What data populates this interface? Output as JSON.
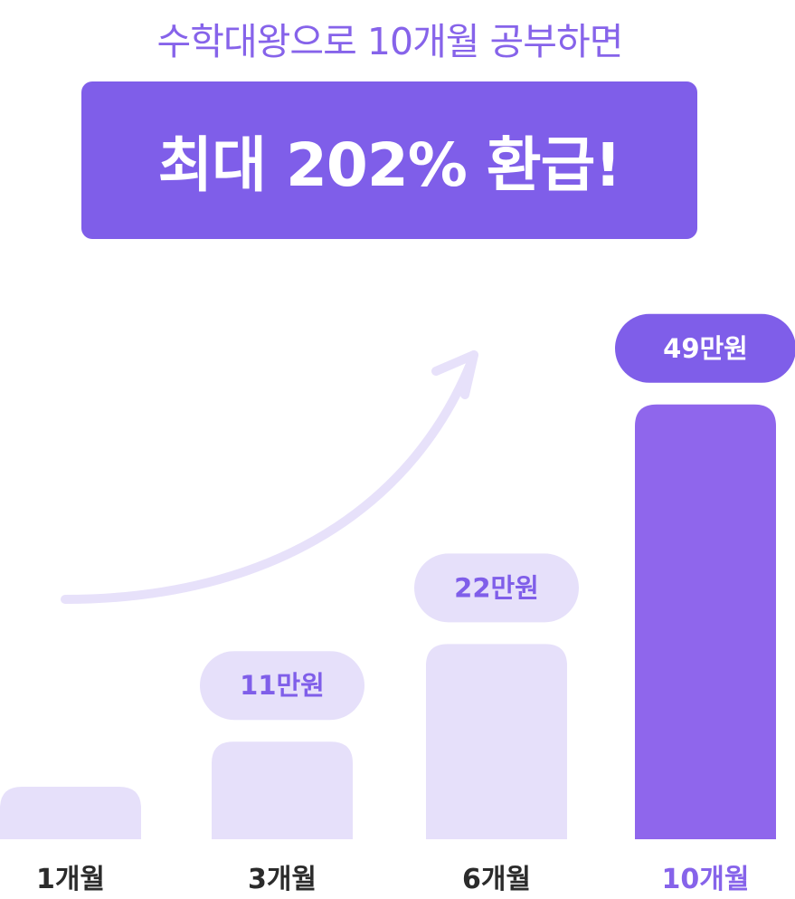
{
  "header": {
    "subtitle": "수학대왕으로 10개월 공부하면",
    "headline": "최대 202% 환급!"
  },
  "colors": {
    "accent": "#7f5ee9",
    "accent_text": "#8663ea",
    "bar_light": "#e6e0fa",
    "bar_highlight": "#8f66ec",
    "arrow": "#e7e1fa",
    "tick_text": "#2b2b2b",
    "highlight_label_text": "#ffffff"
  },
  "chart_data": {
    "type": "bar",
    "categories": [
      "1개월",
      "3개월",
      "6개월",
      "10개월"
    ],
    "values": [
      0,
      11,
      22,
      49
    ],
    "data_labels": [
      "",
      "11만원",
      "22만원",
      "49만원"
    ],
    "unit": "만원",
    "highlight_index": 3,
    "ylim": [
      0,
      49
    ],
    "grid": false,
    "legend": "none",
    "trend_arrow": true
  }
}
